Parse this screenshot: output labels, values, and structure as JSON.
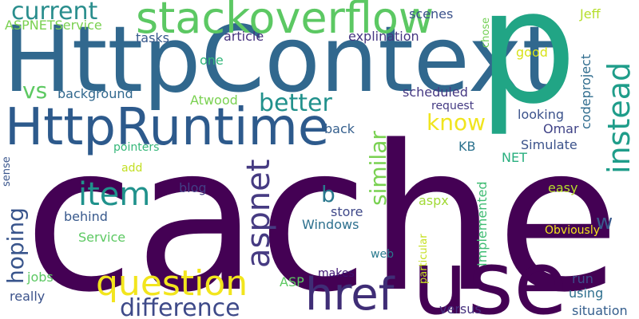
{
  "words": [
    {
      "text": "cache",
      "color": "#440154"
    },
    {
      "text": "HttpContext",
      "color": "#31688E"
    },
    {
      "text": "p",
      "color": "#21A585"
    },
    {
      "text": "use",
      "color": "#440154"
    },
    {
      "text": "HttpRuntime",
      "color": "#2D5A8C"
    },
    {
      "text": "stackoverflow",
      "color": "#5CC863"
    },
    {
      "text": "question",
      "color": "#F2E51D"
    },
    {
      "text": "href",
      "color": "#3F2D76"
    },
    {
      "text": "item",
      "color": "#20928C"
    },
    {
      "text": "aspnet",
      "color": "#463B82"
    },
    {
      "text": "instead",
      "color": "#1F9D8A"
    },
    {
      "text": "difference",
      "color": "#3E4A89"
    },
    {
      "text": "current",
      "color": "#2A8E8D"
    },
    {
      "text": "better",
      "color": "#21918C"
    },
    {
      "text": "know",
      "color": "#F0E51E"
    },
    {
      "text": "similar",
      "color": "#79D151"
    },
    {
      "text": "hoping",
      "color": "#39558C"
    },
    {
      "text": "vs",
      "color": "#5DC962"
    },
    {
      "text": "b",
      "color": "#2A788E"
    },
    {
      "text": "w",
      "color": "#38598C"
    },
    {
      "text": "Jeff",
      "color": "#B5DE2B"
    },
    {
      "text": "codeproject",
      "color": "#2F6C8E"
    },
    {
      "text": "ASPNETService",
      "color": "#7AD151"
    },
    {
      "text": "tasks",
      "color": "#38598C"
    },
    {
      "text": "article",
      "color": "#46327E"
    },
    {
      "text": "explination",
      "color": "#453781"
    },
    {
      "text": "scenes",
      "color": "#3B528B"
    },
    {
      "text": "chose",
      "color": "#73D056"
    },
    {
      "text": "one",
      "color": "#32B67A"
    },
    {
      "text": "good",
      "color": "#D8E219"
    },
    {
      "text": "background",
      "color": "#31688E"
    },
    {
      "text": "scheduled",
      "color": "#453882"
    },
    {
      "text": "request",
      "color": "#443A83"
    },
    {
      "text": "Atwood",
      "color": "#7AD151"
    },
    {
      "text": "looking",
      "color": "#3B528B"
    },
    {
      "text": "Omar",
      "color": "#404387"
    },
    {
      "text": "back",
      "color": "#355F8D"
    },
    {
      "text": "Simulate",
      "color": "#3B528B"
    },
    {
      "text": "pointers",
      "color": "#35B779"
    },
    {
      "text": "KB",
      "color": "#2C728E"
    },
    {
      "text": "NET",
      "color": "#29AF7F"
    },
    {
      "text": "sense",
      "color": "#39558C"
    },
    {
      "text": "add",
      "color": "#C2DF23"
    },
    {
      "text": "blog",
      "color": "#433E85"
    },
    {
      "text": "aspx",
      "color": "#A2DA37"
    },
    {
      "text": "Implemented",
      "color": "#3FBC73"
    },
    {
      "text": "easy",
      "color": "#B5DE2B"
    },
    {
      "text": "behind",
      "color": "#38598C"
    },
    {
      "text": "store",
      "color": "#3F4889"
    },
    {
      "text": "Windows",
      "color": "#2D708E"
    },
    {
      "text": "Obviously",
      "color": "#F1E51D"
    },
    {
      "text": "Service",
      "color": "#5DC963"
    },
    {
      "text": "particular",
      "color": "#C5E021"
    },
    {
      "text": "web",
      "color": "#297A8E"
    },
    {
      "text": "jobs",
      "color": "#5CC863"
    },
    {
      "text": "ASP",
      "color": "#5EC962"
    },
    {
      "text": "makes",
      "color": "#3B0F70"
    },
    {
      "text": "run",
      "color": "#3D4E8A"
    },
    {
      "text": "really",
      "color": "#3B528B"
    },
    {
      "text": "using",
      "color": "#2E6F8E"
    },
    {
      "text": "versus",
      "color": "#46307E"
    },
    {
      "text": "situation",
      "color": "#355E8D"
    }
  ]
}
